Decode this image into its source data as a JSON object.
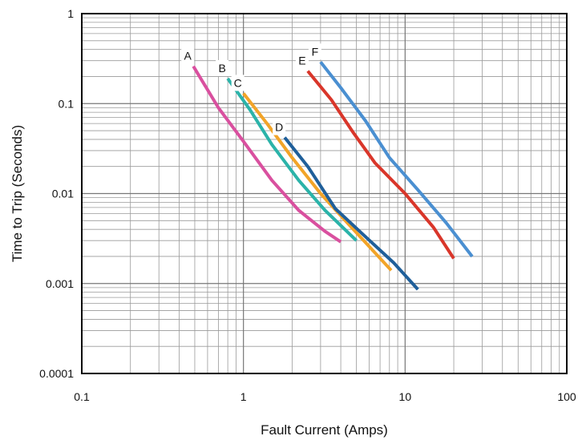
{
  "chart_data": {
    "type": "line",
    "title": "",
    "xlabel": "Fault Current (Amps)",
    "ylabel": "Time to Trip (Seconds)",
    "x_scale": "log",
    "y_scale": "log",
    "xlim": [
      0.1,
      100
    ],
    "ylim": [
      0.0001,
      1
    ],
    "x_ticks": [
      {
        "value": 0.1,
        "label": "0.1"
      },
      {
        "value": 1,
        "label": "1"
      },
      {
        "value": 10,
        "label": "10"
      },
      {
        "value": 100,
        "label": "100"
      }
    ],
    "y_ticks": [
      {
        "value": 1,
        "label": "1"
      },
      {
        "value": 0.1,
        "label": "0.1"
      },
      {
        "value": 0.01,
        "label": "0.01"
      },
      {
        "value": 0.001,
        "label": "0.001"
      },
      {
        "value": 0.0001,
        "label": "0.0001"
      }
    ],
    "grid": true,
    "legend": "none",
    "series": [
      {
        "name": "A",
        "color": "#d9509f",
        "points": [
          [
            0.49,
            0.26
          ],
          [
            0.7,
            0.09
          ],
          [
            1.0,
            0.038
          ],
          [
            1.5,
            0.014
          ],
          [
            2.2,
            0.0065
          ],
          [
            3.2,
            0.0038
          ],
          [
            4.0,
            0.0029
          ]
        ]
      },
      {
        "name": "B",
        "color": "#2bb3a9",
        "points": [
          [
            0.8,
            0.19
          ],
          [
            1.1,
            0.085
          ],
          [
            1.5,
            0.035
          ],
          [
            2.2,
            0.014
          ],
          [
            3.2,
            0.0065
          ],
          [
            5.0,
            0.003
          ]
        ]
      },
      {
        "name": "C",
        "color": "#f2a428",
        "points": [
          [
            1.0,
            0.13
          ],
          [
            1.4,
            0.06
          ],
          [
            2.0,
            0.025
          ],
          [
            3.0,
            0.01
          ],
          [
            4.5,
            0.0045
          ],
          [
            8.2,
            0.0014
          ]
        ]
      },
      {
        "name": "D",
        "color": "#1f5f9a",
        "points": [
          [
            1.8,
            0.042
          ],
          [
            2.5,
            0.02
          ],
          [
            3.7,
            0.0068
          ],
          [
            5.5,
            0.0035
          ],
          [
            8.5,
            0.0017
          ],
          [
            12.0,
            0.00086
          ]
        ]
      },
      {
        "name": "E",
        "color": "#d9362a",
        "points": [
          [
            2.5,
            0.23
          ],
          [
            3.5,
            0.11
          ],
          [
            4.8,
            0.047
          ],
          [
            6.5,
            0.022
          ],
          [
            10.0,
            0.01
          ],
          [
            15.0,
            0.0042
          ],
          [
            20.0,
            0.0019
          ]
        ]
      },
      {
        "name": "F",
        "color": "#4a8fd1",
        "points": [
          [
            3.0,
            0.29
          ],
          [
            4.0,
            0.15
          ],
          [
            5.7,
            0.064
          ],
          [
            8.0,
            0.025
          ],
          [
            12.0,
            0.011
          ],
          [
            18.0,
            0.0047
          ],
          [
            26.0,
            0.002
          ]
        ]
      }
    ]
  }
}
